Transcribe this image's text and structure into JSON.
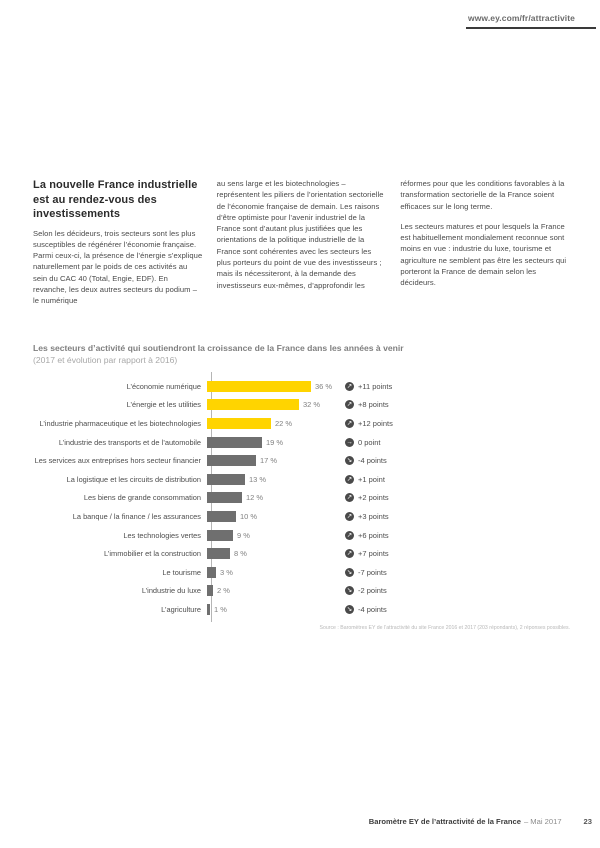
{
  "header": {
    "link": "www.ey.com/fr/attractivite"
  },
  "article": {
    "heading": "La nouvelle France industrielle est au rendez-vous des investissements",
    "col1": "Selon les décideurs, trois secteurs sont les plus susceptibles de régénérer l’économie française. Parmi ceux-ci, la présence de l’énergie s’explique naturellement par le poids de ces activités au sein du CAC 40 (Total, Engie, EDF). En revanche, les deux autres secteurs du podium – le numérique",
    "col2": "au sens large et les biotechnologies – représentent les piliers de l’orientation sectorielle de l’économie française de demain. Les raisons d’être optimiste pour l’avenir industriel de la France sont d’autant plus justifiées que les orientations de la politique industrielle de la France sont cohérentes avec les secteurs les plus porteurs du point de vue des investisseurs ; mais ils nécessiteront, à la demande des investisseurs eux-mêmes, d’approfondir les",
    "col3_p1": "réformes pour que les conditions favorables à la transformation sectorielle de la France soient efficaces sur le long terme.",
    "col3_p2": "Les secteurs matures et pour lesquels la France est habituellement mondialement reconnue sont moins en vue : industrie du luxe, tourisme et agriculture ne semblent pas être les secteurs qui porteront la France de demain selon les décideurs."
  },
  "chart_data": {
    "type": "bar",
    "orientation": "horizontal",
    "title": "Les secteurs d’activité qui soutiendront la croissance de la France dans les années à venir",
    "subtitle": "(2017 et évolution par rapport à 2016)",
    "unit": "%",
    "xlim": [
      0,
      40
    ],
    "grid": false,
    "categories": [
      "L’économie numérique",
      "L’énergie et les utilities",
      "L’industrie pharmaceutique et les biotechnologies",
      "L’industrie des transports et de l’automobile",
      "Les services aux entreprises hors secteur financier",
      "La logistique et les circuits de distribution",
      "Les biens de grande consommation",
      "La banque / la finance / les assurances",
      "Les technologies vertes",
      "L’immobilier et la construction",
      "Le tourisme",
      "L’industrie du luxe",
      "L’agriculture"
    ],
    "values": [
      36,
      32,
      22,
      19,
      17,
      13,
      12,
      10,
      9,
      8,
      3,
      2,
      1
    ],
    "value_labels": [
      "36 %",
      "32 %",
      "22 %",
      "19 %",
      "17 %",
      "13 %",
      "12 %",
      "10 %",
      "9 %",
      "8 %",
      "3 %",
      "2 %",
      "1 %"
    ],
    "delta_labels": [
      "+11 points",
      "+8 points",
      "+12 points",
      "0 point",
      "-4 points",
      "+1 point",
      "+2 points",
      "+3 points",
      "+6 points",
      "+7 points",
      "-7 points",
      "-2 points",
      "-4 points"
    ],
    "delta_directions": [
      "up",
      "up",
      "up",
      "flat",
      "down",
      "up",
      "up",
      "up",
      "up",
      "up",
      "down",
      "down",
      "down"
    ],
    "highlight_count": 3,
    "colors": {
      "highlight": "#FFD400",
      "normal": "#6f6f6f",
      "badge": "#4a4a4a"
    },
    "icons": {
      "up": "↗",
      "flat": "→",
      "down": "↘"
    },
    "source": "Source : Baromètres EY de l’attractivité du site France 2016 et 2017 (203 répondants), 2 réponses possibles."
  },
  "footer": {
    "title": "Baromètre EY de l’attractivité de la France",
    "date": "– Mai 2017",
    "page_number": "23"
  }
}
